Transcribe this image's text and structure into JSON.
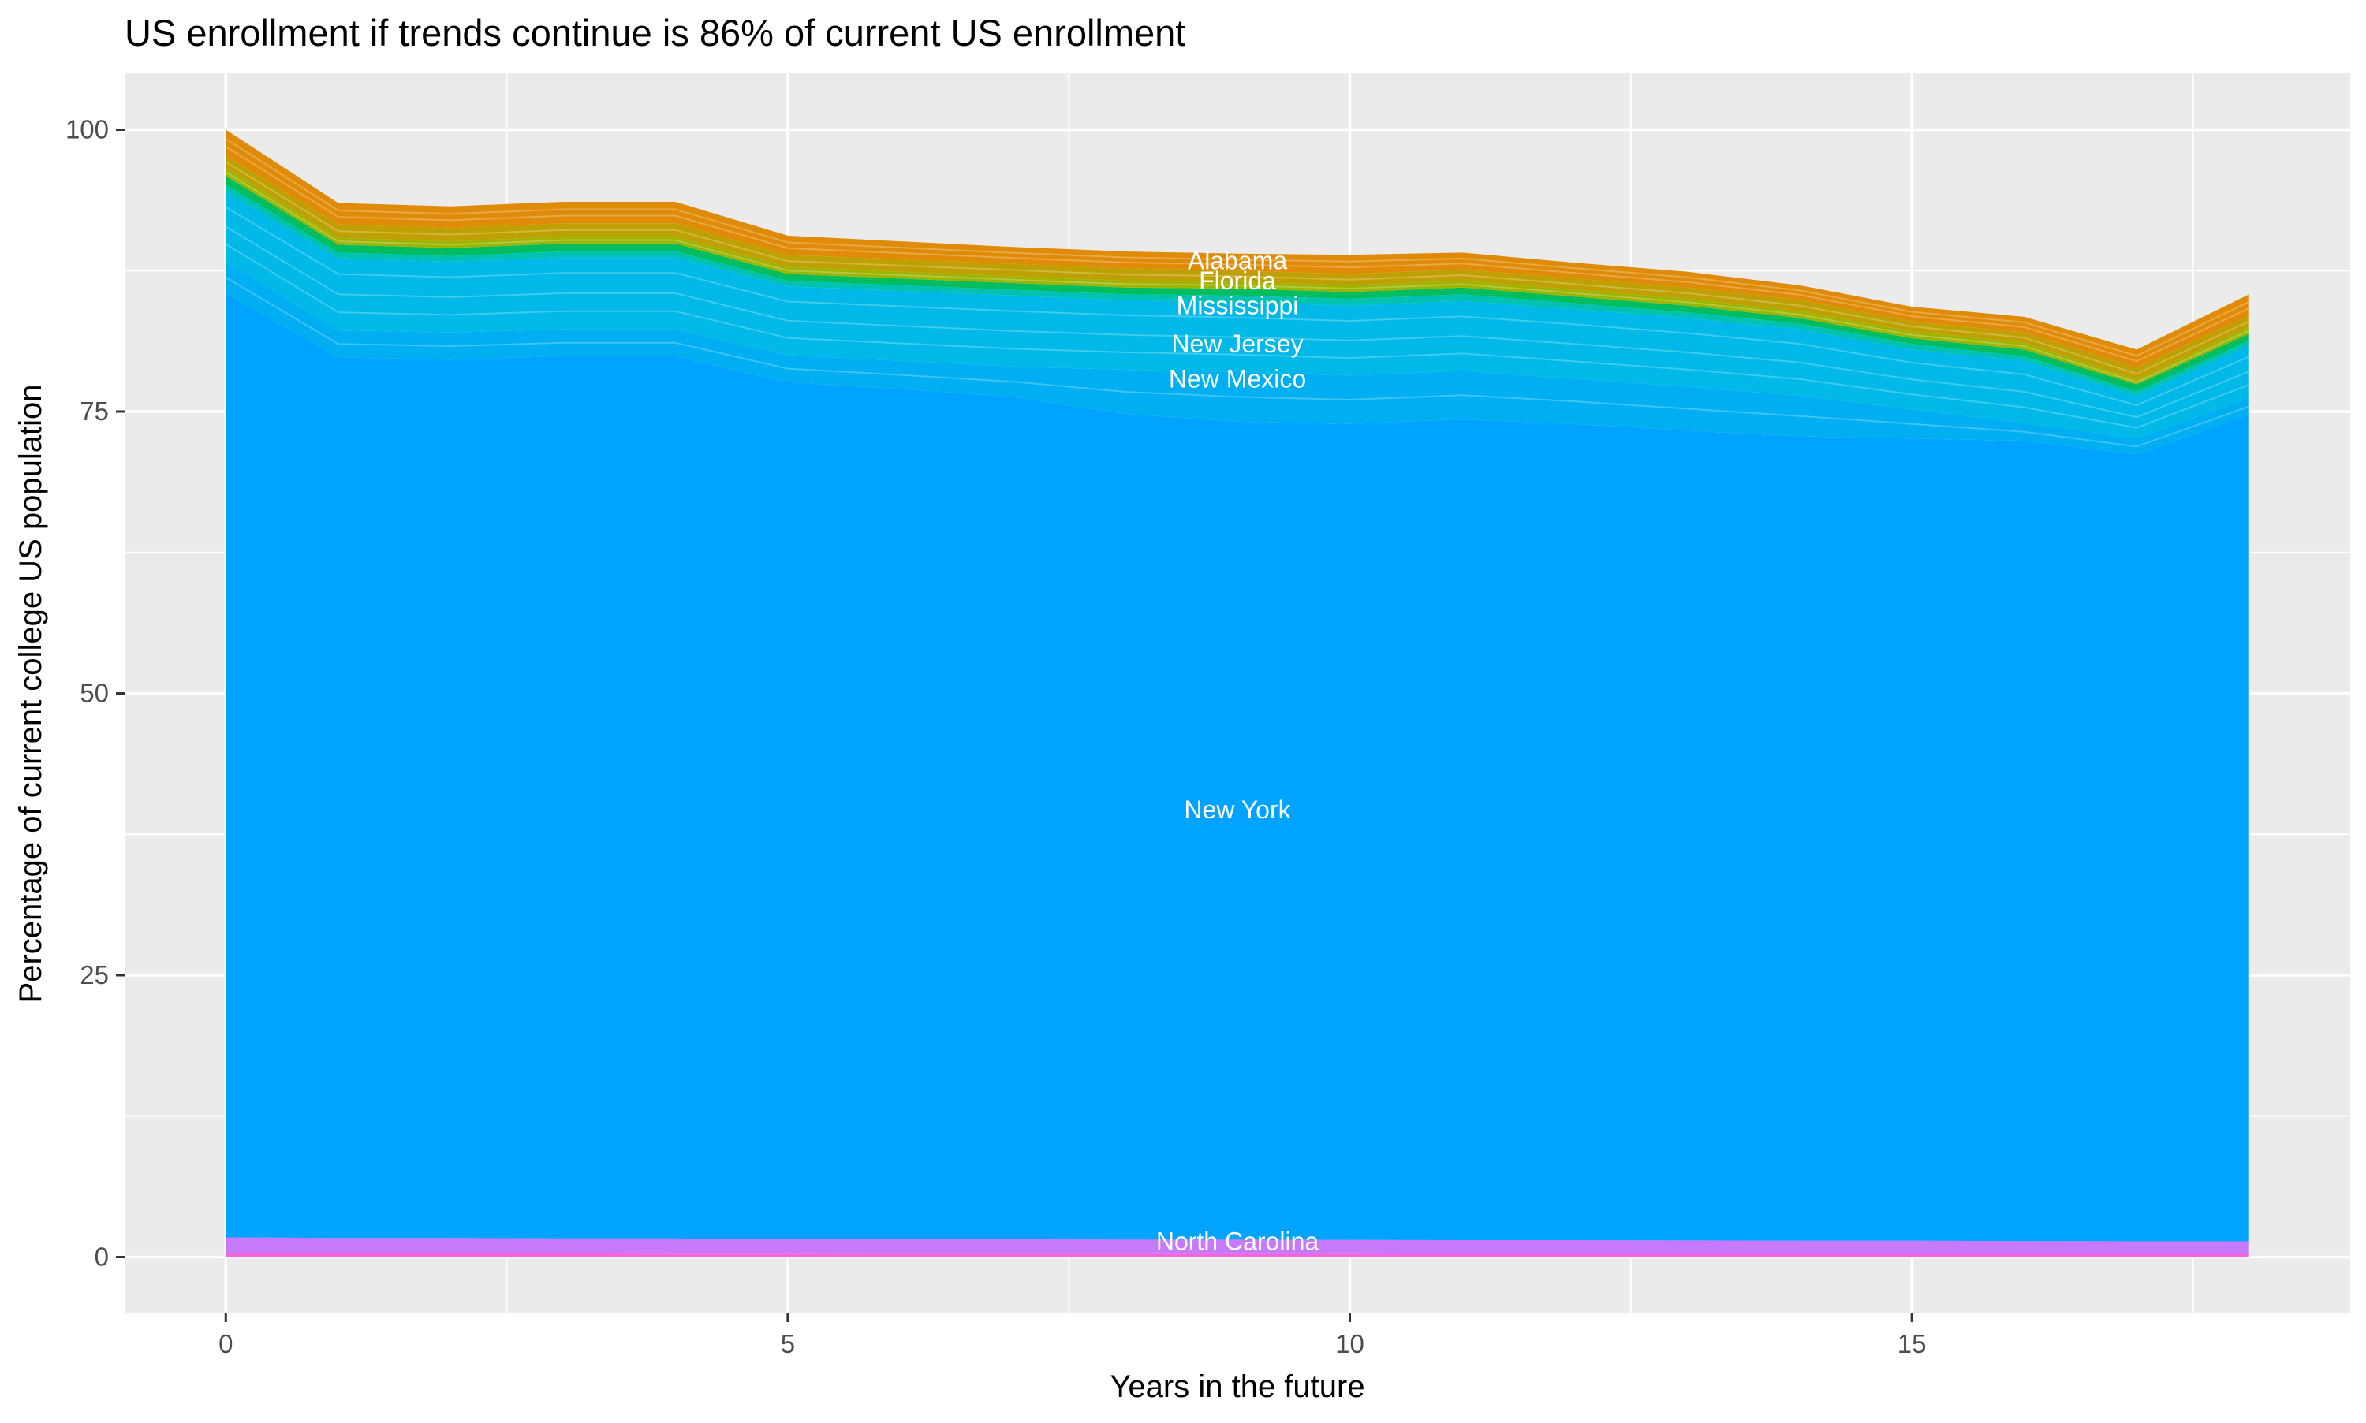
{
  "chart": {
    "title": "US enrollment if trends continue is 86% of current US enrollment",
    "xlabel": "Years in the future",
    "ylabel": "Percentage of current college US population",
    "panel_bg": "#EBEBEB",
    "grid_color": "#FFFFFF",
    "tick_mark_color": "#333333",
    "tick_label_color": "#4D4D4D",
    "area_label_color": "#FFFFFF"
  },
  "chart_data": {
    "type": "area",
    "stacked": true,
    "series_order": "bottom-to-top",
    "unit": "percent of current US college population",
    "x": [
      0,
      1,
      2,
      3,
      4,
      5,
      6,
      7,
      8,
      9,
      10,
      11,
      12,
      13,
      14,
      15,
      16,
      17,
      18
    ],
    "xlim": [
      -0.9,
      18.9
    ],
    "ylim": [
      -5,
      105
    ],
    "x_ticks": [
      0,
      5,
      10,
      15
    ],
    "y_ticks": [
      0,
      25,
      50,
      75,
      100
    ],
    "x_minor": [
      2.5,
      7.5,
      12.5,
      17.5
    ],
    "y_minor": [
      12.5,
      37.5,
      62.5,
      87.5
    ],
    "grid": "white major and minor gridlines on gray panel",
    "legend": "none (direct white labels on areas)",
    "final_total_pct": 86,
    "series": [
      {
        "id": "states-after-north-carolina-sliver",
        "label": "",
        "color": "#FF62D6",
        "stack_top_pct": [
          0.35,
          0.35,
          0.35,
          0.35,
          0.34,
          0.34,
          0.33,
          0.33,
          0.33,
          0.32,
          0.32,
          0.31,
          0.31,
          0.3,
          0.3,
          0.3,
          0.3,
          0.29,
          0.29
        ],
        "inner_lines": []
      },
      {
        "id": "north-carolina",
        "label": "North Carolina",
        "color": "#C879FA",
        "stack_top_pct": [
          1.75,
          1.7,
          1.7,
          1.65,
          1.65,
          1.6,
          1.6,
          1.58,
          1.55,
          1.55,
          1.52,
          1.5,
          1.5,
          1.48,
          1.45,
          1.45,
          1.42,
          1.4,
          1.4
        ],
        "inner_lines": []
      },
      {
        "id": "new-york",
        "label": "New York",
        "color": "#00A3FF",
        "stack_top_pct": [
          85.5,
          79.8,
          79.6,
          79.9,
          79.9,
          77.6,
          77.0,
          76.3,
          74.8,
          74.1,
          73.9,
          74.3,
          73.9,
          73.3,
          72.8,
          72.6,
          72.4,
          71.2,
          74.7
        ],
        "inner_lines": []
      },
      {
        "id": "new-mexico",
        "label": "New Mexico",
        "color": "#00AEF2",
        "stack_top_pct": [
          88.3,
          82.2,
          82.0,
          82.3,
          82.3,
          80.0,
          79.5,
          79.0,
          78.7,
          78.5,
          78.2,
          78.6,
          77.9,
          77.2,
          76.4,
          75.2,
          74.0,
          72.6,
          76.2
        ],
        "inner_lines": [
          0.5
        ]
      },
      {
        "id": "new-jersey",
        "label": "New Jersey",
        "color": "#00B9E8",
        "stack_top_pct": [
          94.5,
          88.6,
          88.3,
          88.7,
          88.7,
          86.1,
          85.7,
          85.3,
          84.9,
          84.7,
          84.4,
          84.8,
          84.1,
          83.3,
          82.3,
          80.5,
          79.5,
          76.4,
          80.9
        ],
        "inner_lines": [
          0.22,
          0.5,
          0.75
        ]
      },
      {
        "id": "teal-sliver-states",
        "label": "",
        "color": "#00C2B2",
        "stack_top_pct": [
          95.1,
          89.1,
          88.8,
          89.2,
          89.2,
          86.6,
          86.2,
          85.8,
          85.4,
          85.3,
          85.0,
          85.4,
          84.6,
          83.8,
          82.8,
          81.0,
          79.9,
          76.8,
          81.3
        ],
        "inner_lines": []
      },
      {
        "id": "mississippi",
        "label": "Mississippi",
        "color": "#00BD60",
        "stack_top_pct": [
          95.9,
          89.8,
          89.5,
          89.9,
          89.9,
          87.2,
          86.8,
          86.4,
          86.0,
          85.9,
          85.6,
          86.0,
          85.2,
          84.4,
          83.3,
          81.5,
          80.5,
          77.4,
          81.9
        ],
        "inner_lines": []
      },
      {
        "id": "yellow-green-sliver-states",
        "label": "",
        "color": "#9DB400",
        "stack_top_pct": [
          96.6,
          90.4,
          90.1,
          90.5,
          90.5,
          87.8,
          87.4,
          87.0,
          86.6,
          86.5,
          86.2,
          86.6,
          85.8,
          85.0,
          83.9,
          82.1,
          81.1,
          77.8,
          82.5
        ],
        "inner_lines": [
          0.5
        ]
      },
      {
        "id": "florida",
        "label": "Florida",
        "color": "#BFA003",
        "stack_top_pct": [
          97.7,
          91.6,
          91.3,
          91.7,
          91.7,
          88.9,
          88.5,
          88.1,
          87.7,
          87.5,
          87.2,
          87.6,
          86.8,
          86.0,
          84.9,
          83.0,
          82.0,
          78.9,
          83.5
        ],
        "inner_lines": [
          0.5
        ]
      },
      {
        "id": "alabama",
        "label": "Alabama",
        "color": "#E08B07",
        "stack_top_pct": [
          100,
          93.5,
          93.2,
          93.6,
          93.6,
          90.6,
          90.1,
          89.6,
          89.2,
          89.0,
          88.9,
          89.1,
          88.2,
          87.4,
          86.2,
          84.3,
          83.4,
          80.5,
          85.4
        ],
        "inner_lines": [
          0.35,
          0.65
        ]
      }
    ],
    "area_labels": [
      {
        "text": "Alabama",
        "x": 9,
        "y": 88.4
      },
      {
        "text": "Florida",
        "x": 9,
        "y": 86.6
      },
      {
        "text": "Mississippi",
        "x": 9,
        "y": 84.4
      },
      {
        "text": "New Jersey",
        "x": 9,
        "y": 81.0
      },
      {
        "text": "New Mexico",
        "x": 9,
        "y": 77.9
      },
      {
        "text": "New York",
        "x": 9,
        "y": 39.7
      },
      {
        "text": "North Carolina",
        "x": 9,
        "y": 1.4
      }
    ]
  }
}
